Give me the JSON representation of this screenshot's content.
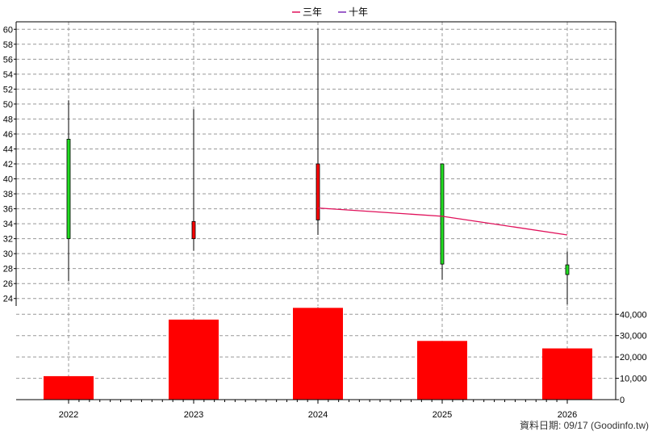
{
  "chart_data": {
    "type": "candlestick+bar",
    "legend": {
      "placement": "top-center",
      "items": [
        {
          "label": "三年",
          "color": "#e0105a"
        },
        {
          "label": "十年",
          "color": "#7a2ab8"
        }
      ]
    },
    "categories": [
      "2022",
      "2023",
      "2024",
      "2025",
      "2026"
    ],
    "price_axis": {
      "ylim": [
        23,
        61
      ],
      "ticks": [
        24,
        26,
        28,
        30,
        32,
        34,
        36,
        38,
        40,
        42,
        44,
        46,
        48,
        50,
        52,
        54,
        56,
        58,
        60
      ]
    },
    "candles": [
      {
        "x": "2022",
        "open": 32.0,
        "close": 45.3,
        "high": 50.5,
        "low": 26.3,
        "color": "#22dd22"
      },
      {
        "x": "2023",
        "open": 34.3,
        "close": 32.0,
        "high": 49.3,
        "low": 30.4,
        "color": "#ff0000"
      },
      {
        "x": "2024",
        "open": 42.0,
        "close": 34.5,
        "high": 60.1,
        "low": 32.5,
        "color": "#ff0000"
      },
      {
        "x": "2025",
        "open": 28.6,
        "close": 42.0,
        "high": 42.0,
        "low": 26.5,
        "color": "#22dd22"
      },
      {
        "x": "2026",
        "open": 27.2,
        "close": 28.5,
        "high": 30.3,
        "low": 23.2,
        "color": "#22dd22"
      }
    ],
    "three_year_line": {
      "name": "三年",
      "color": "#e0105a",
      "points": [
        {
          "x": "2024",
          "y": 36.1
        },
        {
          "x": "2025",
          "y": 35.0
        },
        {
          "x": "2026",
          "y": 32.5
        }
      ]
    },
    "volume": {
      "color": "#ff0000",
      "values": [
        11000,
        37500,
        43000,
        27500,
        24000
      ],
      "ylim": [
        0,
        43500
      ],
      "ticks": [
        0,
        10000,
        20000,
        30000,
        40000
      ],
      "tick_labels": [
        "0",
        "10,000",
        "20,000",
        "30,000",
        "40,000"
      ]
    },
    "grid": true
  },
  "footer": {
    "source": "資料日期: 09/17  (Goodinfo.tw)"
  }
}
